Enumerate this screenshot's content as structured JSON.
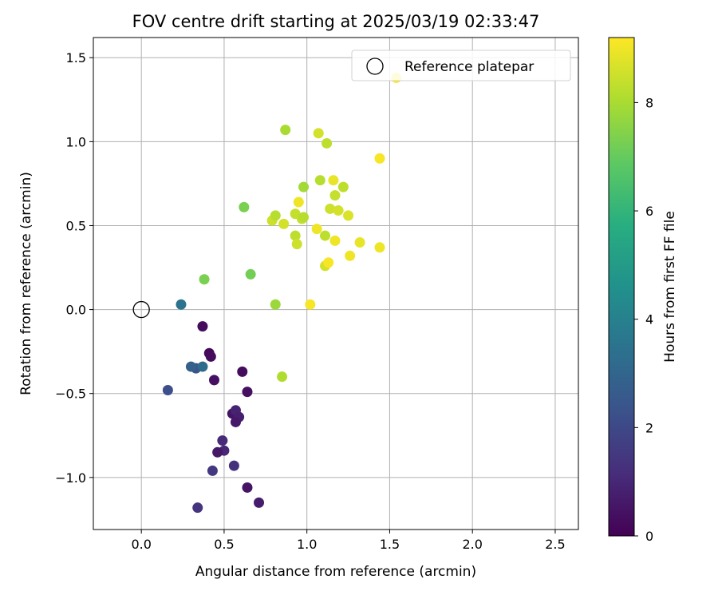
{
  "chart_data": {
    "type": "scatter",
    "title": "FOV centre drift starting at 2025/03/19 02:33:47",
    "xlabel": "Angular distance from reference (arcmin)",
    "ylabel": "Rotation from reference (arcmin)",
    "xlim": [
      -0.29,
      2.64
    ],
    "ylim": [
      -1.31,
      1.62
    ],
    "x_ticks": [
      0.0,
      0.5,
      1.0,
      1.5,
      2.0,
      2.5
    ],
    "x_tick_labels": [
      "0.0",
      "0.5",
      "1.0",
      "1.5",
      "2.0",
      "2.5"
    ],
    "y_ticks": [
      -1.0,
      -0.5,
      0.0,
      0.5,
      1.0,
      1.5
    ],
    "y_tick_labels": [
      "−1.0",
      "−0.5",
      "0.0",
      "0.5",
      "1.0",
      "1.5"
    ],
    "grid": true,
    "legend": {
      "position": "top-right",
      "entries": [
        {
          "label": "Reference platepar",
          "marker": "open-circle"
        }
      ]
    },
    "reference": {
      "x": 0.0,
      "y": 0.0
    },
    "colorbar": {
      "label": "Hours from first FF file",
      "range": [
        0,
        9.2
      ],
      "ticks": [
        0,
        2,
        4,
        6,
        8
      ],
      "colormap": "viridis"
    },
    "points": [
      {
        "x": 0.37,
        "y": -0.1,
        "t": 0.3
      },
      {
        "x": 0.41,
        "y": -0.26,
        "t": 0.2
      },
      {
        "x": 0.42,
        "y": -0.28,
        "t": 0.3
      },
      {
        "x": 0.44,
        "y": -0.42,
        "t": 0.4
      },
      {
        "x": 0.61,
        "y": -0.37,
        "t": 0.3
      },
      {
        "x": 0.64,
        "y": -0.49,
        "t": 0.4
      },
      {
        "x": 0.55,
        "y": -0.62,
        "t": 0.5
      },
      {
        "x": 0.57,
        "y": -0.6,
        "t": 0.9
      },
      {
        "x": 0.59,
        "y": -0.64,
        "t": 0.8
      },
      {
        "x": 0.57,
        "y": -0.67,
        "t": 0.6
      },
      {
        "x": 0.49,
        "y": -0.78,
        "t": 1.1
      },
      {
        "x": 0.5,
        "y": -0.84,
        "t": 1.0
      },
      {
        "x": 0.46,
        "y": -0.85,
        "t": 0.6
      },
      {
        "x": 0.56,
        "y": -0.93,
        "t": 1.3
      },
      {
        "x": 0.43,
        "y": -0.96,
        "t": 1.5
      },
      {
        "x": 0.64,
        "y": -1.06,
        "t": 0.5
      },
      {
        "x": 0.71,
        "y": -1.15,
        "t": 0.7
      },
      {
        "x": 0.34,
        "y": -1.18,
        "t": 1.4
      },
      {
        "x": 0.16,
        "y": -0.48,
        "t": 2.2
      },
      {
        "x": 0.33,
        "y": -0.35,
        "t": 2.4
      },
      {
        "x": 0.3,
        "y": -0.34,
        "t": 2.8
      },
      {
        "x": 0.37,
        "y": -0.34,
        "t": 3.2
      },
      {
        "x": 0.24,
        "y": 0.03,
        "t": 3.5
      },
      {
        "x": 0.38,
        "y": 0.18,
        "t": 7.3
      },
      {
        "x": 0.62,
        "y": 0.61,
        "t": 7.3
      },
      {
        "x": 0.66,
        "y": 0.21,
        "t": 7.2
      },
      {
        "x": 0.81,
        "y": 0.03,
        "t": 7.8
      },
      {
        "x": 0.85,
        "y": -0.4,
        "t": 8.1
      },
      {
        "x": 0.79,
        "y": 0.53,
        "t": 8.5
      },
      {
        "x": 0.81,
        "y": 0.56,
        "t": 8.2
      },
      {
        "x": 0.86,
        "y": 0.51,
        "t": 8.6
      },
      {
        "x": 0.87,
        "y": 1.07,
        "t": 8.0
      },
      {
        "x": 0.93,
        "y": 0.57,
        "t": 8.4
      },
      {
        "x": 0.93,
        "y": 0.44,
        "t": 8.3
      },
      {
        "x": 0.94,
        "y": 0.39,
        "t": 8.5
      },
      {
        "x": 0.95,
        "y": 0.64,
        "t": 9.0
      },
      {
        "x": 0.97,
        "y": 0.54,
        "t": 8.4
      },
      {
        "x": 0.98,
        "y": 0.55,
        "t": 8.2
      },
      {
        "x": 0.98,
        "y": 0.73,
        "t": 7.9
      },
      {
        "x": 1.02,
        "y": 0.03,
        "t": 9.1
      },
      {
        "x": 1.06,
        "y": 0.48,
        "t": 9.0
      },
      {
        "x": 1.07,
        "y": 1.05,
        "t": 8.6
      },
      {
        "x": 1.08,
        "y": 0.77,
        "t": 8.2
      },
      {
        "x": 1.11,
        "y": 0.44,
        "t": 8.3
      },
      {
        "x": 1.11,
        "y": 0.26,
        "t": 8.6
      },
      {
        "x": 1.12,
        "y": 0.99,
        "t": 8.3
      },
      {
        "x": 1.13,
        "y": 0.28,
        "t": 9.1
      },
      {
        "x": 1.14,
        "y": 0.6,
        "t": 8.5
      },
      {
        "x": 1.16,
        "y": 0.77,
        "t": 8.9
      },
      {
        "x": 1.17,
        "y": 0.68,
        "t": 8.4
      },
      {
        "x": 1.17,
        "y": 0.41,
        "t": 9.0
      },
      {
        "x": 1.19,
        "y": 0.59,
        "t": 8.6
      },
      {
        "x": 1.22,
        "y": 0.73,
        "t": 8.3
      },
      {
        "x": 1.25,
        "y": 0.56,
        "t": 8.7
      },
      {
        "x": 1.26,
        "y": 0.32,
        "t": 9.0
      },
      {
        "x": 1.32,
        "y": 0.4,
        "t": 8.9
      },
      {
        "x": 1.44,
        "y": 0.9,
        "t": 9.1
      },
      {
        "x": 1.44,
        "y": 0.37,
        "t": 9.0
      },
      {
        "x": 1.54,
        "y": 1.38,
        "t": 9.2
      }
    ]
  }
}
